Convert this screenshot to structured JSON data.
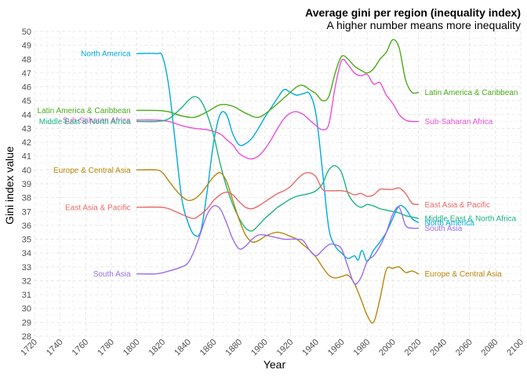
{
  "chart_data": {
    "type": "line",
    "title": "Average gini per region (inequality index)",
    "subtitle": "A higher number means more inequality",
    "xlabel": "Year",
    "ylabel": "Gini index value",
    "xlim": [
      1720,
      2100
    ],
    "ylim": [
      28,
      50
    ],
    "x_ticks": [
      1720,
      1740,
      1760,
      1780,
      1800,
      1820,
      1840,
      1860,
      1880,
      1900,
      1920,
      1940,
      1960,
      1980,
      2000,
      2020,
      2040,
      2060,
      2080,
      2100
    ],
    "y_ticks": [
      28,
      29,
      30,
      31,
      32,
      33,
      34,
      35,
      36,
      37,
      38,
      39,
      40,
      41,
      42,
      43,
      44,
      45,
      46,
      47,
      48,
      49,
      50
    ],
    "grid": true,
    "legend": "direct labels at line ends",
    "series": [
      {
        "name": "North America",
        "color": "#00a9e0",
        "start_label": "North America",
        "end_label": "North America",
        "x": [
          1800,
          1815,
          1820,
          1825,
          1830,
          1835,
          1840,
          1845,
          1850,
          1855,
          1860,
          1865,
          1870,
          1875,
          1880,
          1885,
          1890,
          1895,
          1900,
          1905,
          1910,
          1915,
          1920,
          1925,
          1930,
          1935,
          1940,
          1945,
          1950,
          1955,
          1960,
          1965,
          1970,
          1973,
          1976,
          1980,
          1985,
          1990,
          1995,
          2000,
          2005,
          2010,
          2015,
          2020
        ],
        "y": [
          48.4,
          48.4,
          48.2,
          46.0,
          42.0,
          38.0,
          36.2,
          35.3,
          35.6,
          38.5,
          42.0,
          44.0,
          44.0,
          42.6,
          41.8,
          41.9,
          42.3,
          43.0,
          43.8,
          44.5,
          45.2,
          45.8,
          45.6,
          45.4,
          45.5,
          45.5,
          44.0,
          40.0,
          35.8,
          34.5,
          34.0,
          33.6,
          33.8,
          33.5,
          34.2,
          33.4,
          34.2,
          34.8,
          35.5,
          36.5,
          37.4,
          37.2,
          36.5,
          36.2
        ]
      },
      {
        "name": "Latin America & Caribbean",
        "color": "#4aab18",
        "start_label": "Latin America & Caribbean",
        "end_label": "Latin America & Caribbean",
        "x": [
          1800,
          1815,
          1825,
          1835,
          1845,
          1855,
          1865,
          1875,
          1885,
          1895,
          1905,
          1915,
          1925,
          1930,
          1935,
          1940,
          1945,
          1950,
          1955,
          1960,
          1965,
          1970,
          1975,
          1980,
          1985,
          1990,
          1995,
          2000,
          2005,
          2010,
          2015,
          2020
        ],
        "y": [
          44.3,
          44.3,
          44.2,
          43.9,
          43.8,
          44.2,
          44.7,
          44.6,
          44.1,
          43.8,
          44.4,
          45.2,
          46.0,
          46.1,
          45.8,
          45.5,
          45.0,
          45.3,
          47.0,
          48.2,
          48.0,
          47.5,
          47.2,
          47.0,
          47.3,
          48.0,
          48.5,
          49.4,
          48.8,
          46.5,
          45.6,
          45.6
        ]
      },
      {
        "name": "Sub-Saharan Africa",
        "color": "#ec4fd6",
        "start_label": "Sub-Saharan Africa",
        "end_label": "Sub-Saharan Africa",
        "x": [
          1800,
          1815,
          1825,
          1835,
          1845,
          1855,
          1865,
          1870,
          1875,
          1880,
          1885,
          1890,
          1895,
          1900,
          1905,
          1910,
          1915,
          1920,
          1925,
          1930,
          1935,
          1940,
          1945,
          1950,
          1955,
          1960,
          1965,
          1970,
          1975,
          1980,
          1985,
          1990,
          1995,
          2000,
          2005,
          2010,
          2015,
          2020
        ],
        "y": [
          43.6,
          43.6,
          43.5,
          43.2,
          43.0,
          42.9,
          42.6,
          42.2,
          41.8,
          41.2,
          40.9,
          40.8,
          41.0,
          41.5,
          42.2,
          43.0,
          43.7,
          44.1,
          44.2,
          44.0,
          43.6,
          43.2,
          42.9,
          43.3,
          46.0,
          47.9,
          47.6,
          47.0,
          46.8,
          46.9,
          46.2,
          46.3,
          45.4,
          44.8,
          44.0,
          43.6,
          43.5,
          43.5
        ]
      },
      {
        "name": "Middle East & North Africa",
        "color": "#1ab57f",
        "start_label": "Middle East & North Africa",
        "end_label": "Middle East & North Africa",
        "x": [
          1800,
          1815,
          1825,
          1835,
          1840,
          1845,
          1850,
          1855,
          1860,
          1865,
          1870,
          1875,
          1880,
          1885,
          1890,
          1895,
          1900,
          1905,
          1910,
          1915,
          1920,
          1925,
          1930,
          1935,
          1940,
          1945,
          1950,
          1955,
          1960,
          1965,
          1970,
          1975,
          1980,
          1985,
          1990,
          1995,
          2000,
          2005,
          2010,
          2015,
          2020
        ],
        "y": [
          43.5,
          43.5,
          43.7,
          44.5,
          45.0,
          45.3,
          45.0,
          44.0,
          42.5,
          40.5,
          38.8,
          37.5,
          36.5,
          35.8,
          35.6,
          36.0,
          36.5,
          36.9,
          37.3,
          37.6,
          37.9,
          38.1,
          38.2,
          38.3,
          38.5,
          39.0,
          40.0,
          40.3,
          39.8,
          38.3,
          37.6,
          37.3,
          37.5,
          37.4,
          37.2,
          37.1,
          37.0,
          36.9,
          36.7,
          36.6,
          36.5
        ]
      },
      {
        "name": "East Asia & Pacific",
        "color": "#e86a6a",
        "start_label": "East Asia & Pacific",
        "end_label": "East Asia & Pacific",
        "x": [
          1800,
          1820,
          1830,
          1840,
          1845,
          1850,
          1855,
          1860,
          1865,
          1870,
          1875,
          1880,
          1885,
          1890,
          1895,
          1900,
          1905,
          1910,
          1915,
          1920,
          1925,
          1930,
          1935,
          1940,
          1945,
          1950,
          1955,
          1960,
          1965,
          1970,
          1975,
          1980,
          1985,
          1990,
          1995,
          2000,
          2005,
          2010,
          2015,
          2020
        ],
        "y": [
          37.3,
          37.3,
          37.0,
          36.6,
          36.5,
          36.8,
          37.2,
          37.8,
          38.2,
          38.4,
          38.2,
          37.7,
          37.3,
          37.2,
          37.4,
          37.7,
          38.0,
          38.3,
          38.5,
          38.8,
          39.3,
          39.7,
          39.8,
          39.5,
          38.6,
          38.5,
          38.5,
          38.5,
          38.4,
          38.2,
          38.3,
          38.1,
          38.2,
          38.6,
          38.6,
          38.6,
          38.7,
          38.3,
          37.6,
          37.5
        ]
      },
      {
        "name": "Europe & Central Asia",
        "color": "#b8860b",
        "start_label": "Europe & Central Asia",
        "end_label": "Europe & Central Asia",
        "x": [
          1800,
          1815,
          1820,
          1825,
          1830,
          1835,
          1840,
          1845,
          1850,
          1855,
          1860,
          1865,
          1870,
          1875,
          1880,
          1885,
          1890,
          1895,
          1900,
          1905,
          1910,
          1915,
          1920,
          1925,
          1930,
          1935,
          1940,
          1945,
          1950,
          1955,
          1960,
          1965,
          1970,
          1975,
          1980,
          1985,
          1990,
          1995,
          2000,
          2005,
          2010,
          2015,
          2020
        ],
        "y": [
          40.0,
          40.0,
          39.8,
          39.2,
          38.6,
          38.1,
          37.8,
          37.9,
          38.3,
          38.9,
          39.5,
          39.8,
          39.2,
          37.8,
          36.4,
          35.3,
          34.8,
          34.9,
          35.2,
          35.4,
          35.5,
          35.4,
          35.2,
          35.0,
          34.6,
          34.2,
          33.7,
          33.0,
          32.4,
          32.2,
          32.3,
          32.4,
          31.8,
          30.7,
          29.5,
          29.0,
          30.7,
          32.8,
          32.9,
          33.0,
          32.6,
          32.7,
          32.5
        ]
      },
      {
        "name": "South Asia",
        "color": "#9a6cf0",
        "start_label": "South Asia",
        "end_label": "South Asia",
        "x": [
          1800,
          1815,
          1825,
          1835,
          1840,
          1845,
          1850,
          1855,
          1860,
          1865,
          1870,
          1875,
          1880,
          1885,
          1890,
          1895,
          1900,
          1905,
          1910,
          1915,
          1920,
          1925,
          1930,
          1935,
          1940,
          1945,
          1950,
          1955,
          1960,
          1965,
          1970,
          1975,
          1980,
          1985,
          1990,
          1995,
          2000,
          2005,
          2010,
          2015,
          2020
        ],
        "y": [
          32.5,
          32.5,
          32.7,
          33.0,
          33.3,
          34.2,
          35.5,
          36.8,
          37.4,
          37.2,
          36.2,
          35.0,
          34.3,
          34.5,
          35.0,
          35.3,
          35.3,
          35.2,
          35.1,
          35.0,
          35.0,
          35.0,
          34.9,
          34.2,
          33.8,
          34.2,
          34.6,
          34.6,
          34.3,
          33.0,
          31.8,
          32.2,
          33.4,
          33.8,
          34.5,
          35.5,
          36.8,
          37.3,
          36.0,
          35.8,
          35.8
        ]
      }
    ]
  }
}
